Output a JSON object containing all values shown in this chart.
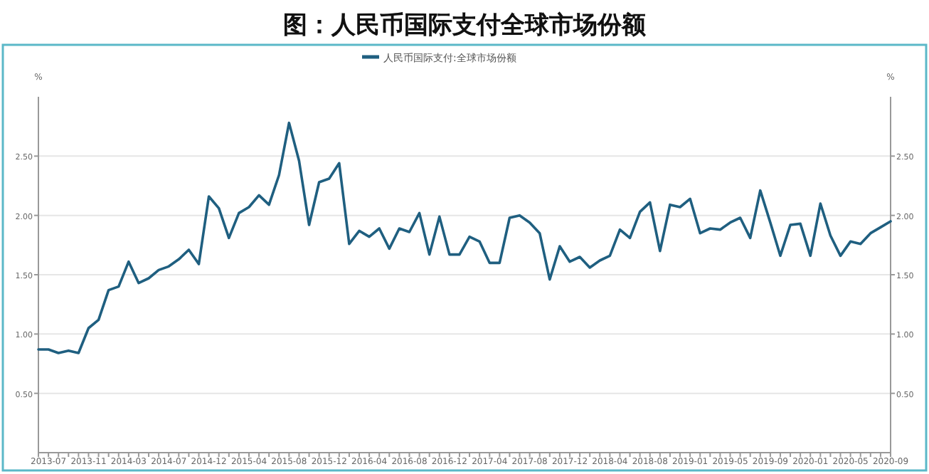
{
  "chart_data": {
    "type": "line",
    "title": "图：人民币国际支付全球市场份额",
    "ylabel": "%",
    "y2label": "%",
    "categories": [
      null,
      "2013-07",
      null,
      null,
      null,
      "2013-11",
      null,
      null,
      null,
      "2014-03",
      null,
      null,
      null,
      "2014-07",
      null,
      null,
      null,
      "2014-12",
      null,
      null,
      null,
      "2015-04",
      null,
      null,
      null,
      "2015-08",
      null,
      null,
      null,
      "2015-12",
      null,
      null,
      null,
      "2016-04",
      null,
      null,
      null,
      "2016-08",
      null,
      null,
      null,
      "2016-12",
      null,
      null,
      null,
      "2017-04",
      null,
      null,
      null,
      "2017-08",
      null,
      null,
      null,
      "2017-12",
      null,
      null,
      null,
      "2018-04",
      null,
      null,
      null,
      "2018-08",
      null,
      null,
      null,
      "2019-01",
      null,
      null,
      null,
      "2019-05",
      null,
      null,
      null,
      "2019-09",
      null,
      null,
      null,
      "2020-01",
      null,
      null,
      null,
      "2020-05",
      null,
      null,
      null,
      "2020-09"
    ],
    "series": [
      {
        "name": "人民币国际支付:全球市场份额",
        "color": "#1f5f80",
        "values": [
          0.87,
          0.87,
          0.84,
          0.86,
          0.84,
          1.05,
          1.12,
          1.37,
          1.4,
          1.61,
          1.43,
          1.47,
          1.54,
          1.57,
          1.63,
          1.71,
          1.59,
          2.16,
          2.06,
          1.81,
          2.02,
          2.07,
          2.17,
          2.09,
          2.34,
          2.78,
          2.46,
          1.92,
          2.28,
          2.31,
          2.44,
          1.76,
          1.87,
          1.82,
          1.89,
          1.72,
          1.89,
          1.86,
          2.02,
          1.67,
          1.99,
          1.67,
          1.67,
          1.82,
          1.78,
          1.6,
          1.6,
          1.98,
          2.0,
          1.94,
          1.85,
          1.46,
          1.74,
          1.61,
          1.65,
          1.56,
          1.62,
          1.66,
          1.88,
          1.81,
          2.03,
          2.11,
          1.7,
          2.09,
          2.07,
          2.14,
          1.85,
          1.89,
          1.88,
          1.94,
          1.98,
          1.81,
          2.21,
          1.94,
          1.66,
          1.92,
          1.93,
          1.66,
          2.1,
          1.83,
          1.66,
          1.78,
          1.76,
          1.85,
          1.9,
          1.95
        ]
      }
    ],
    "ylim": [
      0,
      3
    ],
    "yticks": [
      {
        "value": 0.5,
        "label": "0.50"
      },
      {
        "value": 1,
        "label": "1.00"
      },
      {
        "value": 1.5,
        "label": "1.50"
      },
      {
        "value": 2,
        "label": "2.00"
      },
      {
        "value": 2.5,
        "label": "2.50"
      }
    ],
    "y2lim": [
      0,
      3
    ],
    "y2ticks": [
      {
        "value": 0.5,
        "label": "0.50"
      },
      {
        "value": 1,
        "label": "1.00"
      },
      {
        "value": 1.5,
        "label": "1.50"
      },
      {
        "value": 2,
        "label": "2.00"
      },
      {
        "value": 2.5,
        "label": "2.50"
      }
    ],
    "grid": "y",
    "legend": "top",
    "marker": "none",
    "line_style": "solid"
  }
}
